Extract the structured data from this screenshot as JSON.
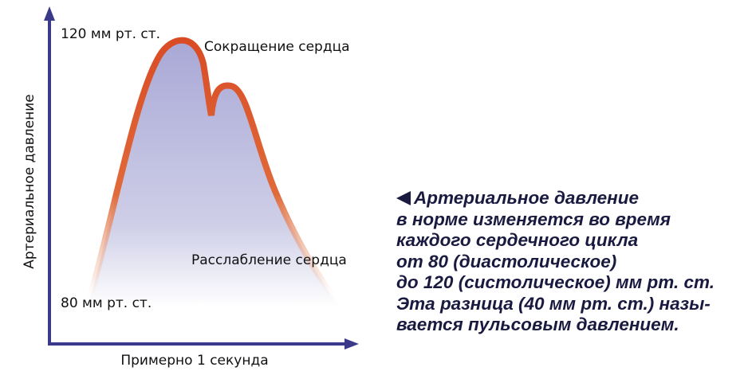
{
  "diagram": {
    "labels": {
      "high": "120 мм рт. ст.",
      "contraction": "Сокращение сердца",
      "relaxation": "Расслабление сердца",
      "low": "80 мм рт. ст.",
      "y_axis": "Артериальное давление",
      "x_axis": "Примерно 1 секунда"
    },
    "caption": [
      "Артериальное давление",
      "в норме изменяется во время",
      "каждого сердечного цикла",
      "от 80 (диастолическое)",
      "до 120 (систолическое) мм рт. ст.",
      "Эта разница (40 мм рт. ст.) назы-",
      "вается пульсовым давлением."
    ]
  }
}
